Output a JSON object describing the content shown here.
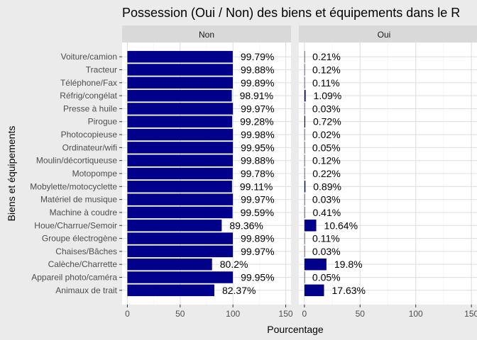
{
  "chart_data": {
    "type": "bar",
    "orientation": "horizontal",
    "title": "Possession (Oui / Non) des biens et équipements dans le R",
    "xlabel": "Pourcentage",
    "ylabel": "Biens et équipements",
    "xlim": [
      -5,
      155
    ],
    "xticks": [
      0,
      50,
      100,
      150
    ],
    "grid": true,
    "facet_order": [
      "non",
      "oui"
    ],
    "categories": [
      "Voiture/camion",
      "Tracteur",
      "Téléphone/Fax",
      "Réfrig/congélat",
      "Presse à huile",
      "Pirogue",
      "Photocopieuse",
      "Ordinateur/wifi",
      "Moulin/décortiqueuse",
      "Motopompe",
      "Mobylette/motocyclette",
      "Matériel de musique",
      "Machine à coudre",
      "Houe/Charrue/Semoir",
      "Groupe électrogène",
      "Chaises/Bâches",
      "Calèche/Charrette",
      "Appareil photo/caméra",
      "Animaux de trait"
    ],
    "facets": {
      "non": {
        "label": "Non",
        "values": [
          99.79,
          99.88,
          99.89,
          98.91,
          99.97,
          99.28,
          99.98,
          99.95,
          99.88,
          99.78,
          99.11,
          99.97,
          99.59,
          89.36,
          99.89,
          99.97,
          80.2,
          99.95,
          82.37
        ],
        "value_labels": [
          "99.79%",
          "99.88%",
          "99.89%",
          "98.91%",
          "99.97%",
          "99.28%",
          "99.98%",
          "99.95%",
          "99.88%",
          "99.78%",
          "99.11%",
          "99.97%",
          "99.59%",
          "89.36%",
          "99.89%",
          "99.97%",
          "80.2%",
          "99.95%",
          "82.37%"
        ]
      },
      "oui": {
        "label": "Oui",
        "values": [
          0.21,
          0.12,
          0.11,
          1.09,
          0.03,
          0.72,
          0.02,
          0.05,
          0.12,
          0.22,
          0.89,
          0.03,
          0.41,
          10.64,
          0.11,
          0.03,
          19.8,
          0.05,
          17.63
        ],
        "value_labels": [
          "0.21%",
          "0.12%",
          "0.11%",
          "1.09%",
          "0.03%",
          "0.72%",
          "0.02%",
          "0.05%",
          "0.12%",
          "0.22%",
          "0.89%",
          "0.03%",
          "0.41%",
          "10.64%",
          "0.11%",
          "0.03%",
          "19.8%",
          "0.05%",
          "17.63%"
        ]
      }
    },
    "colors": {
      "bar": "#00008b",
      "panel_bg": "#ffffff",
      "strip_bg": "#d9d9d9",
      "page_bg": "#ebebeb",
      "grid_major": "#e0e0e0",
      "grid_minor": "#f2f2f2",
      "text": "#000000",
      "tick_text": "#4d4d4d"
    }
  }
}
